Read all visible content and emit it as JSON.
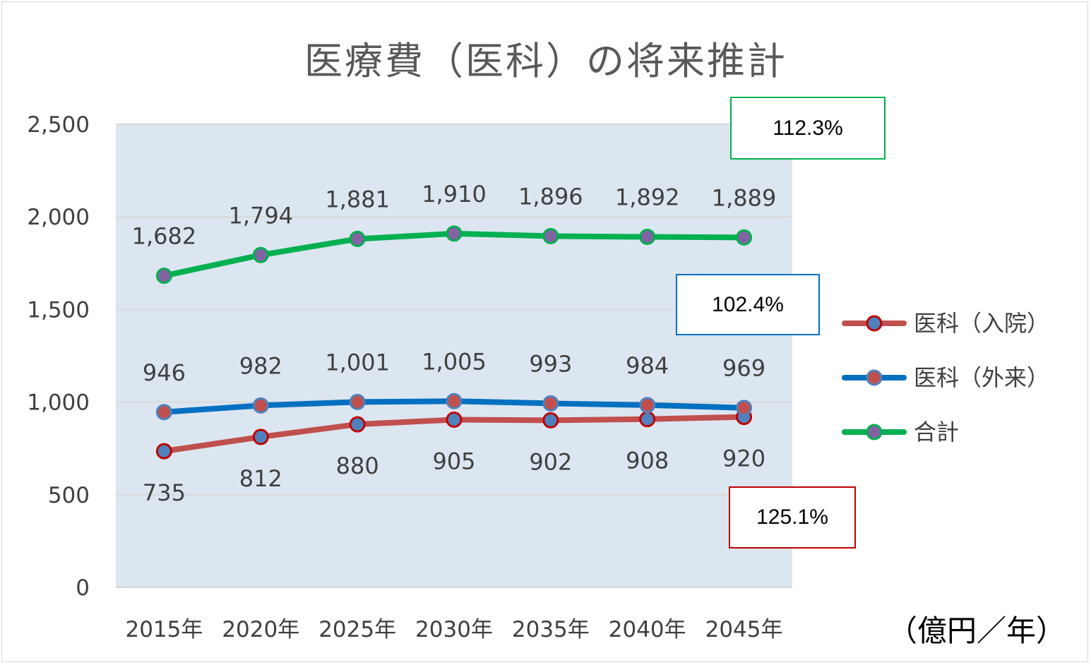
{
  "chart_data": {
    "type": "line",
    "title": "医療費（医科）の将来推計",
    "unit_label": "（億円／年）",
    "categories": [
      "2015年",
      "2020年",
      "2025年",
      "2030年",
      "2035年",
      "2040年",
      "2045年"
    ],
    "series": [
      {
        "name": "医科（入院）",
        "values": [
          735,
          812,
          880,
          905,
          902,
          908,
          920
        ],
        "labels": [
          "735",
          "812",
          "880",
          "905",
          "902",
          "908",
          "920"
        ],
        "color": "#c0504d",
        "marker_fill": "#4f81bd",
        "marker_stroke": "#c00000",
        "label_pos": "below"
      },
      {
        "name": "医科（外来）",
        "values": [
          946,
          982,
          1001,
          1005,
          993,
          984,
          969
        ],
        "labels": [
          "946",
          "982",
          "1,001",
          "1,005",
          "993",
          "984",
          "969"
        ],
        "color": "#0070c0",
        "marker_fill": "#c0504d",
        "marker_stroke": "#4f81bd",
        "label_pos": "above"
      },
      {
        "name": "合計",
        "values": [
          1682,
          1794,
          1881,
          1910,
          1896,
          1892,
          1889
        ],
        "labels": [
          "1,682",
          "1,794",
          "1,881",
          "1,910",
          "1,896",
          "1,892",
          "1,889"
        ],
        "color": "#00b050",
        "marker_fill": "#8064a2",
        "marker_stroke": "#00b050",
        "label_pos": "above"
      }
    ],
    "ylim": [
      0,
      2500
    ],
    "yticks": [
      0,
      500,
      1000,
      1500,
      2000,
      2500
    ],
    "ytick_labels": [
      "0",
      "500",
      "1,000",
      "1,500",
      "2,000",
      "2,500"
    ],
    "grid": true,
    "plot_background": "#dce6f1",
    "legend_position": "right",
    "annotations": [
      {
        "text": "112.3%",
        "series": "合計",
        "border_color": "#00b050"
      },
      {
        "text": "102.4%",
        "series": "医科（外来）",
        "border_color": "#0070c0"
      },
      {
        "text": "125.1%",
        "series": "医科（入院）",
        "border_color": "#c00000"
      }
    ]
  }
}
